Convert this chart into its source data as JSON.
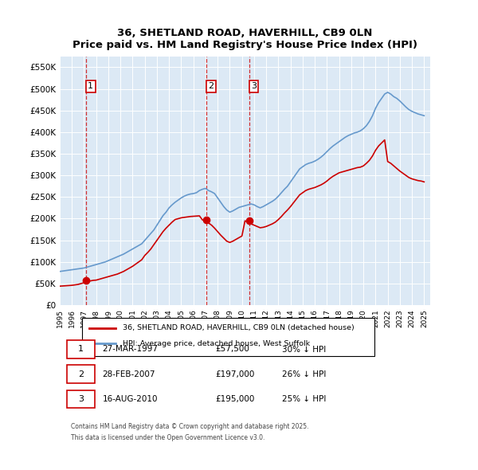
{
  "title": "36, SHETLAND ROAD, HAVERHILL, CB9 0LN",
  "subtitle": "Price paid vs. HM Land Registry's House Price Index (HPI)",
  "legend_line1": "36, SHETLAND ROAD, HAVERHILL, CB9 0LN (detached house)",
  "legend_line2": "HPI: Average price, detached house, West Suffolk",
  "footer1": "Contains HM Land Registry data © Crown copyright and database right 2025.",
  "footer2": "This data is licensed under the Open Government Licence v3.0.",
  "red_line_color": "#cc0000",
  "blue_line_color": "#6699cc",
  "background_color": "#dce9f5",
  "plot_bg_color": "#dce9f5",
  "ylim": [
    0,
    575000
  ],
  "yticks": [
    0,
    50000,
    100000,
    150000,
    200000,
    250000,
    300000,
    350000,
    400000,
    450000,
    500000,
    550000
  ],
  "ytick_labels": [
    "£0",
    "£50K",
    "£100K",
    "£150K",
    "£200K",
    "£250K",
    "£300K",
    "£350K",
    "£400K",
    "£450K",
    "£500K",
    "£550K"
  ],
  "sale_dates": [
    "1997-03-27",
    "2007-02-28",
    "2010-08-16"
  ],
  "sale_prices": [
    57500,
    197000,
    195000
  ],
  "sale_labels": [
    "1",
    "2",
    "3"
  ],
  "table_rows": [
    {
      "num": "1",
      "date": "27-MAR-1997",
      "price": "£57,500",
      "hpi": "30% ↓ HPI"
    },
    {
      "num": "2",
      "date": "28-FEB-2007",
      "price": "£197,000",
      "hpi": "26% ↓ HPI"
    },
    {
      "num": "3",
      "date": "16-AUG-2010",
      "price": "£195,000",
      "hpi": "25% ↓ HPI"
    }
  ],
  "hpi_years": [
    1995,
    1995.25,
    1995.5,
    1995.75,
    1996,
    1996.25,
    1996.5,
    1996.75,
    1997,
    1997.25,
    1997.5,
    1997.75,
    1998,
    1998.25,
    1998.5,
    1998.75,
    1999,
    1999.25,
    1999.5,
    1999.75,
    2000,
    2000.25,
    2000.5,
    2000.75,
    2001,
    2001.25,
    2001.5,
    2001.75,
    2002,
    2002.25,
    2002.5,
    2002.75,
    2003,
    2003.25,
    2003.5,
    2003.75,
    2004,
    2004.25,
    2004.5,
    2004.75,
    2005,
    2005.25,
    2005.5,
    2005.75,
    2006,
    2006.25,
    2006.5,
    2006.75,
    2007,
    2007.25,
    2007.5,
    2007.75,
    2008,
    2008.25,
    2008.5,
    2008.75,
    2009,
    2009.25,
    2009.5,
    2009.75,
    2010,
    2010.25,
    2010.5,
    2010.75,
    2011,
    2011.25,
    2011.5,
    2011.75,
    2012,
    2012.25,
    2012.5,
    2012.75,
    2013,
    2013.25,
    2013.5,
    2013.75,
    2014,
    2014.25,
    2014.5,
    2014.75,
    2015,
    2015.25,
    2015.5,
    2015.75,
    2016,
    2016.25,
    2016.5,
    2016.75,
    2017,
    2017.25,
    2017.5,
    2017.75,
    2018,
    2018.25,
    2018.5,
    2018.75,
    2019,
    2019.25,
    2019.5,
    2019.75,
    2020,
    2020.25,
    2020.5,
    2020.75,
    2021,
    2021.25,
    2021.5,
    2021.75,
    2022,
    2022.25,
    2022.5,
    2022.75,
    2023,
    2023.25,
    2023.5,
    2023.75,
    2024,
    2024.25,
    2024.5,
    2024.75,
    2025
  ],
  "hpi_values": [
    78000,
    79000,
    80000,
    81000,
    82000,
    83000,
    84000,
    85000,
    86000,
    88000,
    90000,
    92000,
    94000,
    96000,
    98000,
    100000,
    103000,
    106000,
    109000,
    112000,
    115000,
    118000,
    122000,
    126000,
    130000,
    134000,
    138000,
    142000,
    150000,
    158000,
    166000,
    174000,
    185000,
    196000,
    207000,
    215000,
    225000,
    232000,
    238000,
    243000,
    248000,
    252000,
    255000,
    257000,
    258000,
    260000,
    265000,
    268000,
    270000,
    265000,
    262000,
    258000,
    248000,
    238000,
    228000,
    220000,
    215000,
    218000,
    222000,
    226000,
    228000,
    230000,
    232000,
    234000,
    232000,
    228000,
    225000,
    228000,
    232000,
    236000,
    240000,
    245000,
    252000,
    260000,
    268000,
    275000,
    285000,
    295000,
    305000,
    315000,
    320000,
    325000,
    328000,
    330000,
    333000,
    337000,
    342000,
    348000,
    355000,
    362000,
    368000,
    373000,
    378000,
    383000,
    388000,
    392000,
    395000,
    398000,
    400000,
    403000,
    408000,
    415000,
    425000,
    438000,
    455000,
    468000,
    478000,
    488000,
    492000,
    488000,
    482000,
    478000,
    472000,
    465000,
    458000,
    452000,
    448000,
    445000,
    442000,
    440000,
    438000
  ],
  "red_years": [
    1995,
    1995.25,
    1995.5,
    1995.75,
    1996,
    1996.25,
    1996.5,
    1996.75,
    1997,
    1997.25,
    1997.5,
    1997.75,
    1998,
    1998.25,
    1998.5,
    1998.75,
    1999,
    1999.25,
    1999.5,
    1999.75,
    2000,
    2000.25,
    2000.5,
    2000.75,
    2001,
    2001.25,
    2001.5,
    2001.75,
    2002,
    2002.25,
    2002.5,
    2002.75,
    2003,
    2003.25,
    2003.5,
    2003.75,
    2004,
    2004.25,
    2004.5,
    2004.75,
    2005,
    2005.25,
    2005.5,
    2005.75,
    2006,
    2006.25,
    2006.5,
    2006.75,
    2007,
    2007.25,
    2007.5,
    2007.75,
    2008,
    2008.25,
    2008.5,
    2008.75,
    2009,
    2009.25,
    2009.5,
    2009.75,
    2010,
    2010.25,
    2010.5,
    2010.75,
    2011,
    2011.25,
    2011.5,
    2011.75,
    2012,
    2012.25,
    2012.5,
    2012.75,
    2013,
    2013.25,
    2013.5,
    2013.75,
    2014,
    2014.25,
    2014.5,
    2014.75,
    2015,
    2015.25,
    2015.5,
    2015.75,
    2016,
    2016.25,
    2016.5,
    2016.75,
    2017,
    2017.25,
    2017.5,
    2017.75,
    2018,
    2018.25,
    2018.5,
    2018.75,
    2019,
    2019.25,
    2019.5,
    2019.75,
    2020,
    2020.25,
    2020.5,
    2020.75,
    2021,
    2021.25,
    2021.5,
    2021.75,
    2022,
    2022.25,
    2022.5,
    2022.75,
    2023,
    2023.25,
    2023.5,
    2023.75,
    2024,
    2024.25,
    2024.5,
    2024.75,
    2025
  ],
  "red_values": [
    44000,
    44500,
    45000,
    45500,
    46000,
    47000,
    48000,
    50000,
    52000,
    54000,
    56000,
    57500,
    58000,
    60000,
    62000,
    64000,
    66000,
    68000,
    70000,
    72000,
    75000,
    78000,
    82000,
    86000,
    90000,
    95000,
    100000,
    105000,
    115000,
    122000,
    130000,
    140000,
    150000,
    160000,
    170000,
    178000,
    185000,
    192000,
    198000,
    200000,
    202000,
    203000,
    204000,
    205000,
    205500,
    206000,
    206500,
    197000,
    197000,
    190000,
    185000,
    178000,
    170000,
    162000,
    155000,
    148000,
    145000,
    148000,
    152000,
    156000,
    160000,
    195000,
    192000,
    188000,
    185000,
    182000,
    179000,
    180000,
    182000,
    185000,
    188000,
    192000,
    198000,
    205000,
    213000,
    220000,
    228000,
    237000,
    246000,
    255000,
    260000,
    265000,
    268000,
    270000,
    272000,
    275000,
    278000,
    282000,
    287000,
    293000,
    298000,
    302000,
    306000,
    308000,
    310000,
    312000,
    314000,
    316000,
    318000,
    319000,
    322000,
    328000,
    335000,
    345000,
    358000,
    368000,
    375000,
    382000,
    332000,
    328000,
    322000,
    316000,
    310000,
    305000,
    300000,
    295000,
    292000,
    290000,
    288000,
    287000,
    285000
  ]
}
